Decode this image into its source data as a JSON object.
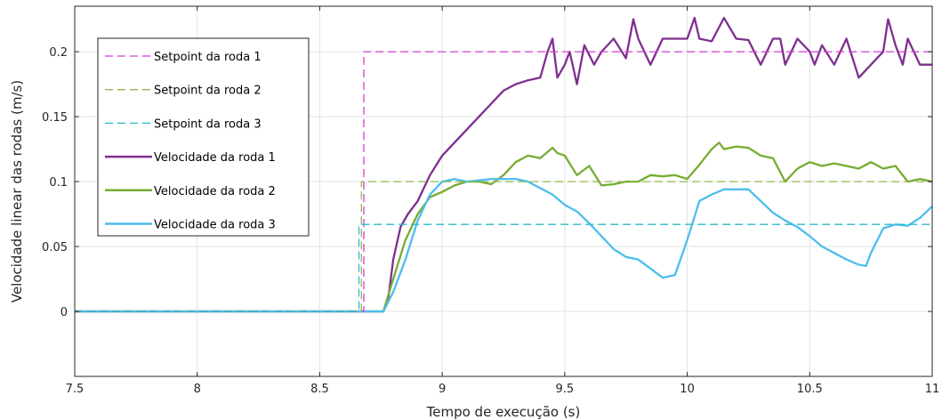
{
  "chart_data": {
    "type": "line",
    "xlabel": "Tempo de execução (s)",
    "ylabel": "Velocidade linear das rodas (m/s)",
    "xlim": [
      7.5,
      11
    ],
    "ylim": [
      -0.05,
      0.235
    ],
    "xticks": [
      7.5,
      8,
      8.5,
      9,
      9.5,
      10,
      10.5,
      11
    ],
    "xtick_labels": [
      "7.5",
      "8",
      "8.5",
      "9",
      "9.5",
      "10",
      "10.5",
      "11"
    ],
    "yticks": [
      0,
      0.05,
      0.1,
      0.15,
      0.2
    ],
    "ytick_labels": [
      "0",
      "0.05",
      "0.1",
      "0.15",
      "0.2"
    ],
    "grid": true,
    "legend_position": "top-left",
    "series": [
      {
        "name": "Setpoint da roda 1",
        "style": "dashed",
        "color": "#d63ad6",
        "x": [
          7.5,
          8.68,
          8.68,
          11
        ],
        "y": [
          0,
          0,
          0.2,
          0.2
        ]
      },
      {
        "name": "Setpoint da roda 2",
        "style": "dashed",
        "color": "#8fb84a",
        "x": [
          7.5,
          8.67,
          8.67,
          11
        ],
        "y": [
          0,
          0,
          0.1,
          0.1
        ]
      },
      {
        "name": "Setpoint da roda 3",
        "style": "dashed",
        "color": "#29b9c9",
        "x": [
          7.5,
          8.66,
          8.66,
          11
        ],
        "y": [
          0,
          0,
          0.067,
          0.067
        ]
      },
      {
        "name": "Velocidade da roda 1",
        "style": "solid",
        "color": "#7e2f8e",
        "x": [
          7.5,
          8.76,
          8.78,
          8.8,
          8.83,
          8.86,
          8.9,
          8.95,
          9.0,
          9.05,
          9.1,
          9.15,
          9.2,
          9.25,
          9.3,
          9.35,
          9.4,
          9.43,
          9.45,
          9.47,
          9.5,
          9.52,
          9.55,
          9.58,
          9.62,
          9.65,
          9.7,
          9.75,
          9.78,
          9.8,
          9.85,
          9.9,
          9.95,
          10.0,
          10.03,
          10.05,
          10.1,
          10.15,
          10.2,
          10.25,
          10.3,
          10.35,
          10.38,
          10.4,
          10.45,
          10.5,
          10.52,
          10.55,
          10.6,
          10.65,
          10.7,
          10.75,
          10.8,
          10.82,
          10.85,
          10.88,
          10.9,
          10.95,
          11.0
        ],
        "y": [
          0,
          0,
          0.01,
          0.04,
          0.065,
          0.075,
          0.085,
          0.105,
          0.12,
          0.13,
          0.14,
          0.15,
          0.16,
          0.17,
          0.175,
          0.178,
          0.18,
          0.2,
          0.21,
          0.18,
          0.19,
          0.2,
          0.175,
          0.205,
          0.19,
          0.2,
          0.21,
          0.195,
          0.225,
          0.21,
          0.19,
          0.21,
          0.21,
          0.21,
          0.226,
          0.21,
          0.208,
          0.226,
          0.21,
          0.209,
          0.19,
          0.21,
          0.21,
          0.19,
          0.21,
          0.2,
          0.19,
          0.205,
          0.19,
          0.21,
          0.18,
          0.19,
          0.2,
          0.225,
          0.205,
          0.19,
          0.21,
          0.19,
          0.19
        ]
      },
      {
        "name": "Velocidade da roda 2",
        "style": "solid",
        "color": "#77ac30",
        "x": [
          7.5,
          8.76,
          8.8,
          8.85,
          8.9,
          8.95,
          9.0,
          9.05,
          9.1,
          9.15,
          9.2,
          9.25,
          9.3,
          9.35,
          9.4,
          9.45,
          9.47,
          9.5,
          9.55,
          9.6,
          9.65,
          9.7,
          9.75,
          9.8,
          9.85,
          9.9,
          9.95,
          10.0,
          10.05,
          10.1,
          10.13,
          10.15,
          10.2,
          10.25,
          10.3,
          10.35,
          10.4,
          10.45,
          10.5,
          10.55,
          10.6,
          10.65,
          10.7,
          10.75,
          10.8,
          10.85,
          10.9,
          10.95,
          11.0
        ],
        "y": [
          0,
          0,
          0.025,
          0.055,
          0.075,
          0.088,
          0.092,
          0.097,
          0.1,
          0.1,
          0.098,
          0.105,
          0.115,
          0.12,
          0.118,
          0.126,
          0.122,
          0.12,
          0.105,
          0.112,
          0.097,
          0.098,
          0.1,
          0.1,
          0.105,
          0.104,
          0.105,
          0.102,
          0.113,
          0.125,
          0.13,
          0.125,
          0.127,
          0.126,
          0.12,
          0.118,
          0.1,
          0.11,
          0.115,
          0.112,
          0.114,
          0.112,
          0.11,
          0.115,
          0.11,
          0.112,
          0.1,
          0.102,
          0.1
        ]
      },
      {
        "name": "Velocidade da roda 3",
        "style": "solid",
        "color": "#4dbeee",
        "x": [
          7.5,
          8.76,
          8.8,
          8.85,
          8.9,
          8.95,
          9.0,
          9.05,
          9.1,
          9.15,
          9.2,
          9.25,
          9.3,
          9.35,
          9.4,
          9.45,
          9.5,
          9.55,
          9.6,
          9.65,
          9.7,
          9.75,
          9.8,
          9.85,
          9.9,
          9.95,
          10.0,
          10.05,
          10.1,
          10.15,
          10.2,
          10.25,
          10.3,
          10.35,
          10.4,
          10.45,
          10.5,
          10.55,
          10.6,
          10.65,
          10.7,
          10.73,
          10.75,
          10.8,
          10.85,
          10.9,
          10.95,
          11.0
        ],
        "y": [
          0,
          0,
          0.015,
          0.04,
          0.07,
          0.09,
          0.1,
          0.102,
          0.1,
          0.101,
          0.102,
          0.102,
          0.102,
          0.1,
          0.095,
          0.09,
          0.082,
          0.077,
          0.068,
          0.058,
          0.048,
          0.042,
          0.04,
          0.033,
          0.026,
          0.028,
          0.055,
          0.085,
          0.09,
          0.094,
          0.094,
          0.094,
          0.085,
          0.076,
          0.07,
          0.065,
          0.058,
          0.05,
          0.045,
          0.04,
          0.036,
          0.035,
          0.045,
          0.064,
          0.067,
          0.066,
          0.072,
          0.081
        ]
      }
    ]
  }
}
